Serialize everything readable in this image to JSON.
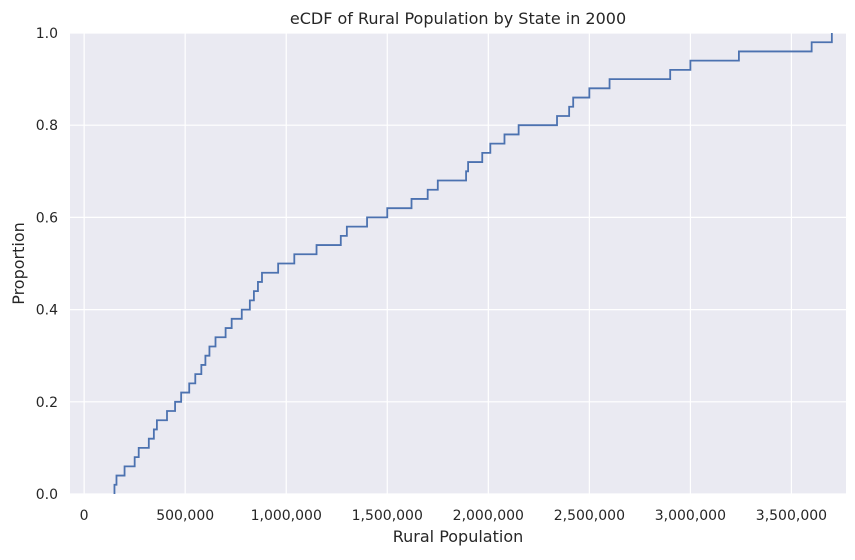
{
  "chart_data": {
    "type": "line",
    "subtype": "ecdf-step",
    "title": "eCDF of Rural Population by State in 2000",
    "xlabel": "Rural Population",
    "ylabel": "Proportion",
    "xlim": [
      -70000,
      3770000
    ],
    "ylim": [
      0,
      1
    ],
    "x_ticks": [
      0,
      500000,
      1000000,
      1500000,
      2000000,
      2500000,
      3000000,
      3500000
    ],
    "x_tick_labels": [
      "0",
      "500,000",
      "1,000,000",
      "1,500,000",
      "2,000,000",
      "2,500,000",
      "3,000,000",
      "3,500,000"
    ],
    "y_ticks": [
      0,
      0.2,
      0.4,
      0.6,
      0.8,
      1.0
    ],
    "y_tick_labels": [
      "0.0",
      "0.2",
      "0.4",
      "0.6",
      "0.8",
      "1.0"
    ],
    "grid": true,
    "colors": {
      "background": "#eaeaf2",
      "grid": "#ffffff",
      "line": "#4c72b0"
    },
    "series": [
      {
        "x": [
          150000,
          160000,
          200000,
          250000,
          270000,
          320000,
          345000,
          360000,
          410000,
          450000,
          480000,
          520000,
          550000,
          580000,
          600000,
          620000,
          650000,
          700000,
          730000,
          780000,
          820000,
          840000,
          860000,
          880000,
          960000,
          1040000,
          1150000,
          1270000,
          1300000,
          1400000,
          1500000,
          1620000,
          1700000,
          1750000,
          1890000,
          1900000,
          1970000,
          2010000,
          2080000,
          2150000,
          2340000,
          2400000,
          2420000,
          2500000,
          2600000,
          2900000,
          3000000,
          3240000,
          3600000,
          3700000
        ],
        "y": [
          0.02,
          0.04,
          0.06,
          0.08,
          0.1,
          0.12,
          0.14,
          0.16,
          0.18,
          0.2,
          0.22,
          0.24,
          0.26,
          0.28,
          0.3,
          0.32,
          0.34,
          0.36,
          0.38,
          0.4,
          0.42,
          0.44,
          0.46,
          0.48,
          0.5,
          0.52,
          0.54,
          0.56,
          0.58,
          0.6,
          0.62,
          0.64,
          0.66,
          0.68,
          0.7,
          0.72,
          0.74,
          0.76,
          0.78,
          0.8,
          0.82,
          0.84,
          0.86,
          0.88,
          0.9,
          0.92,
          0.94,
          0.96,
          0.98,
          1.0
        ]
      }
    ]
  }
}
